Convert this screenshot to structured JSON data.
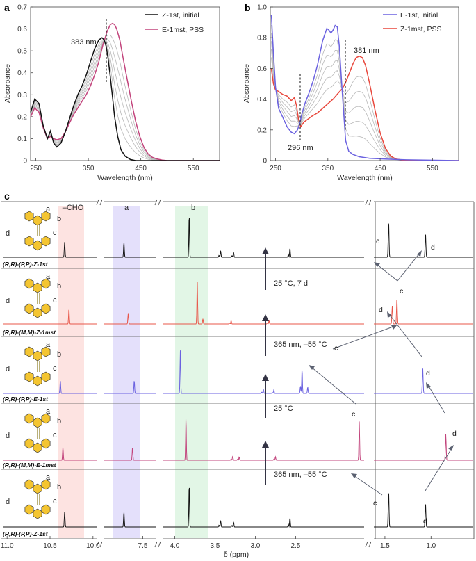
{
  "chart_data": [
    {
      "panel": "a",
      "type": "line",
      "xlabel": "Wavelength (nm)",
      "ylabel": "Absorbance",
      "xlim": [
        240,
        600
      ],
      "ylim": [
        0,
        0.7
      ],
      "xticks": [
        "250",
        "350",
        "450",
        "550"
      ],
      "yticks": [
        "0",
        "0.1",
        "0.2",
        "0.3",
        "0.4",
        "0.5",
        "0.6",
        "0.7"
      ],
      "annotation": "383 nm",
      "legend": [
        "Z-1st, initial",
        "E-1mst, PSS"
      ],
      "colors": {
        "initial": "#111111",
        "pss": "#c2447c",
        "intermediate": "#b8b8b8"
      },
      "series": [
        {
          "name": "Z-1st, initial",
          "x": [
            240,
            248,
            256,
            264,
            272,
            278,
            284,
            290,
            298,
            306,
            314,
            322,
            330,
            338,
            346,
            354,
            362,
            370,
            376,
            380,
            384,
            388,
            392,
            396,
            400,
            406,
            412,
            420,
            430,
            440,
            450,
            470,
            500,
            600
          ],
          "values": [
            0.22,
            0.28,
            0.26,
            0.16,
            0.1,
            0.135,
            0.08,
            0.062,
            0.08,
            0.13,
            0.19,
            0.25,
            0.3,
            0.34,
            0.39,
            0.45,
            0.51,
            0.55,
            0.56,
            0.55,
            0.52,
            0.46,
            0.38,
            0.29,
            0.2,
            0.11,
            0.05,
            0.02,
            0.005,
            0,
            0,
            0,
            0,
            0
          ]
        },
        {
          "name": "E-1mst, PSS",
          "x": [
            240,
            248,
            256,
            264,
            272,
            278,
            284,
            290,
            298,
            306,
            314,
            322,
            330,
            338,
            346,
            354,
            362,
            370,
            378,
            386,
            392,
            396,
            400,
            404,
            410,
            416,
            424,
            432,
            440,
            448,
            456,
            464,
            472,
            480,
            490,
            500,
            520,
            600
          ],
          "values": [
            0.2,
            0.24,
            0.22,
            0.15,
            0.1,
            0.11,
            0.1,
            0.095,
            0.1,
            0.13,
            0.17,
            0.21,
            0.24,
            0.27,
            0.3,
            0.34,
            0.39,
            0.45,
            0.53,
            0.59,
            0.62,
            0.625,
            0.62,
            0.6,
            0.55,
            0.47,
            0.37,
            0.27,
            0.18,
            0.11,
            0.06,
            0.03,
            0.015,
            0.008,
            0.003,
            0,
            0,
            0
          ]
        }
      ]
    },
    {
      "panel": "b",
      "type": "line",
      "xlabel": "Wavelength (nm)",
      "ylabel": "Absorbance",
      "xlim": [
        240,
        600
      ],
      "ylim": [
        0,
        1.0
      ],
      "xticks": [
        "250",
        "350",
        "450",
        "550"
      ],
      "yticks": [
        "0",
        "0.2",
        "0.4",
        "0.6",
        "0.8",
        "1.0"
      ],
      "annotations": [
        "381 nm",
        "296  nm"
      ],
      "legend": [
        "E-1st, initial",
        "Z-1mst, PSS"
      ],
      "colors": {
        "initial": "#6b62e0",
        "pss": "#e8473c",
        "intermediate": "#b8b8b8"
      },
      "series": [
        {
          "name": "E-1st, initial",
          "x": [
            242,
            246,
            250,
            256,
            264,
            272,
            280,
            286,
            292,
            296,
            300,
            306,
            314,
            322,
            330,
            340,
            348,
            352,
            356,
            360,
            364,
            368,
            372,
            378,
            384,
            390,
            398,
            410,
            430,
            460,
            500,
            600
          ],
          "values": [
            0.95,
            0.7,
            0.48,
            0.34,
            0.28,
            0.22,
            0.185,
            0.175,
            0.2,
            0.24,
            0.3,
            0.37,
            0.44,
            0.52,
            0.62,
            0.78,
            0.86,
            0.85,
            0.83,
            0.85,
            0.88,
            0.87,
            0.74,
            0.42,
            0.13,
            0.06,
            0.04,
            0.025,
            0.015,
            0.01,
            0.005,
            0
          ]
        },
        {
          "name": "Z-1mst, PSS",
          "x": [
            242,
            246,
            250,
            256,
            264,
            272,
            280,
            286,
            290,
            294,
            298,
            304,
            312,
            320,
            330,
            340,
            350,
            360,
            370,
            378,
            384,
            390,
            398,
            404,
            410,
            416,
            422,
            430,
            440,
            450,
            460,
            470,
            480,
            500,
            600
          ],
          "values": [
            0.6,
            0.5,
            0.46,
            0.45,
            0.43,
            0.42,
            0.39,
            0.41,
            0.36,
            0.27,
            0.22,
            0.25,
            0.27,
            0.29,
            0.31,
            0.34,
            0.37,
            0.4,
            0.44,
            0.47,
            0.51,
            0.56,
            0.63,
            0.67,
            0.68,
            0.67,
            0.62,
            0.5,
            0.33,
            0.18,
            0.08,
            0.03,
            0.01,
            0,
            0
          ]
        }
      ]
    },
    {
      "panel": "c",
      "type": "line",
      "xlabel": "δ (ppm)",
      "xticks": [
        "11.0",
        "10.5",
        "10.0",
        "7.5",
        "4.0",
        "3.5",
        "3.0",
        "2.5",
        "1.5",
        "1.0"
      ],
      "top_label": "–CHO",
      "band_labels": [
        "a",
        "b"
      ],
      "traces": [
        {
          "label": "(R,R)-(P,P)-Z-1st",
          "color": "#111111",
          "shifts": [
            10.33,
            7.72,
            3.82,
            3.43,
            3.27,
            2.57,
            1.46,
            1.06
          ],
          "heights": [
            0.35,
            0.35,
            1.0,
            0.15,
            0.12,
            0.22,
            0.85,
            0.55
          ]
        },
        {
          "label": "(R,R)-(M,M)-Z-1mst",
          "color": "#e8574a",
          "shifts": [
            10.28,
            7.67,
            3.72,
            3.65,
            3.3,
            2.83,
            1.42,
            1.37
          ],
          "heights": [
            0.35,
            0.25,
            1.0,
            0.12,
            0.08,
            0.08,
            0.42,
            0.58
          ]
        },
        {
          "label": "(R,R)-(P,P)-E-1st",
          "color": "#6b62e0",
          "shifts": [
            10.38,
            7.6,
            3.93,
            2.9,
            2.77,
            2.42,
            2.35,
            1.09
          ],
          "heights": [
            0.3,
            0.3,
            1.0,
            0.1,
            0.08,
            0.58,
            0.15,
            0.6
          ]
        },
        {
          "label": "(R,R)-(M,M)-E-1mst",
          "color": "#c2447c",
          "shifts": [
            10.35,
            7.62,
            3.86,
            3.28,
            3.2,
            2.75,
            1.71,
            0.84
          ],
          "heights": [
            0.3,
            0.3,
            1.0,
            0.1,
            0.08,
            0.08,
            0.9,
            0.6
          ]
        },
        {
          "label": "(R,R)-(P,P)-Z-1st",
          "color": "#111111",
          "shifts": [
            10.33,
            7.72,
            3.82,
            3.43,
            3.27,
            2.57,
            1.46,
            1.06
          ],
          "heights": [
            0.35,
            0.35,
            1.0,
            0.15,
            0.12,
            0.22,
            0.85,
            0.55
          ]
        }
      ],
      "conditions": [
        "25 °C, 7 d",
        "365 nm, –55 °C",
        "25 °C",
        "365 nm, –55 °C"
      ],
      "peak_labels": {
        "c": [
          "c",
          "c",
          "c",
          "c",
          "c"
        ],
        "d": [
          "d",
          "d",
          "d",
          "d",
          "d"
        ]
      },
      "molecule_labels": [
        "a",
        "b",
        "c",
        "d"
      ],
      "band_colors": {
        "cho": "#fde3e1",
        "a": "#e4e0fb",
        "b": "#e2f6e6"
      }
    }
  ]
}
